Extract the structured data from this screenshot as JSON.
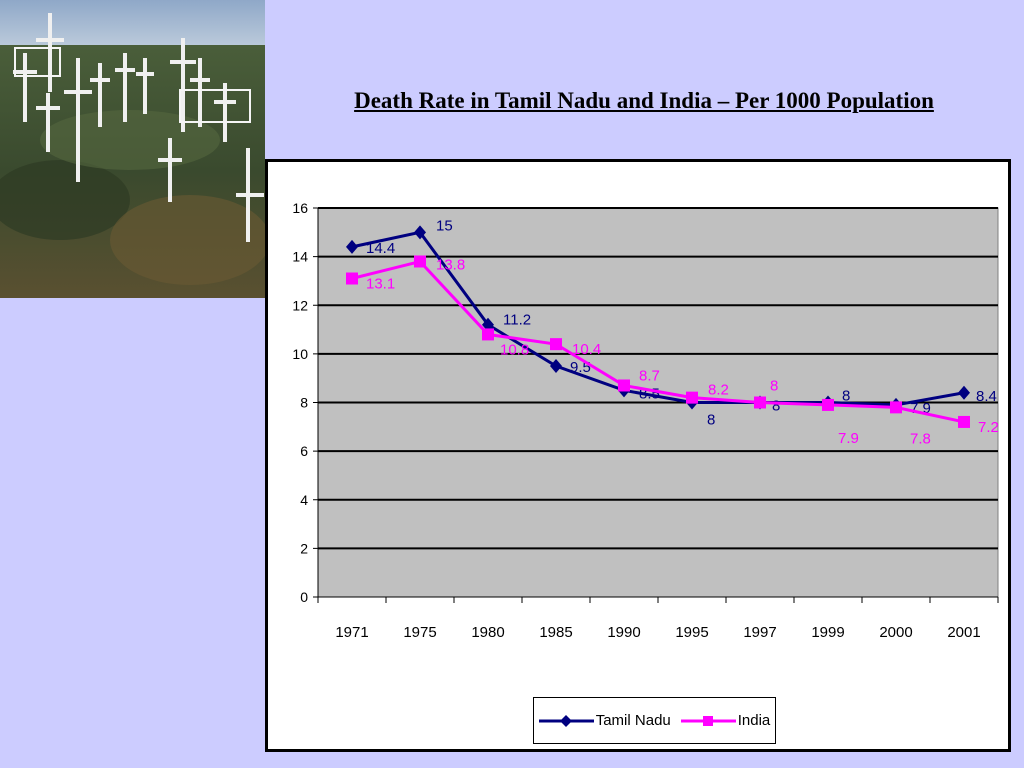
{
  "colors": {
    "background": "#ccccff",
    "plot_area": "#c0c0c0",
    "tamil_nadu": "#000080",
    "india": "#ff00ff"
  },
  "page": {
    "title": "Death Rate in Tamil Nadu and India – Per 1000 Population",
    "photo": "cemetery-with-white-crosses"
  },
  "chart_data": {
    "type": "line",
    "title": "",
    "xlabel": "",
    "ylabel": "",
    "categories": [
      "1971",
      "1975",
      "1980",
      "1985",
      "1990",
      "1995",
      "1997",
      "1999",
      "2000",
      "2001"
    ],
    "ylim": [
      0,
      16
    ],
    "yticks": [
      0,
      2,
      4,
      6,
      8,
      10,
      12,
      14,
      16
    ],
    "grid": true,
    "legend_position": "bottom",
    "series": [
      {
        "name": "Tamil Nadu",
        "marker": "diamond",
        "values": [
          14.4,
          15,
          11.2,
          9.5,
          8.5,
          8,
          8,
          8,
          7.9,
          8.4
        ],
        "labels": [
          "14.4",
          "15",
          "11.2",
          "9.5",
          "8.5",
          "8",
          "8",
          "8",
          "7.9",
          "8.4"
        ]
      },
      {
        "name": "India",
        "marker": "square",
        "values": [
          13.1,
          13.8,
          10.8,
          10.4,
          8.7,
          8.2,
          8,
          7.9,
          7.8,
          7.2
        ],
        "labels": [
          "13.1",
          "13.8",
          "10.8",
          "10.4",
          "8.7",
          "8.2",
          "8",
          "7.9",
          "7.8",
          "7.2"
        ]
      }
    ]
  }
}
